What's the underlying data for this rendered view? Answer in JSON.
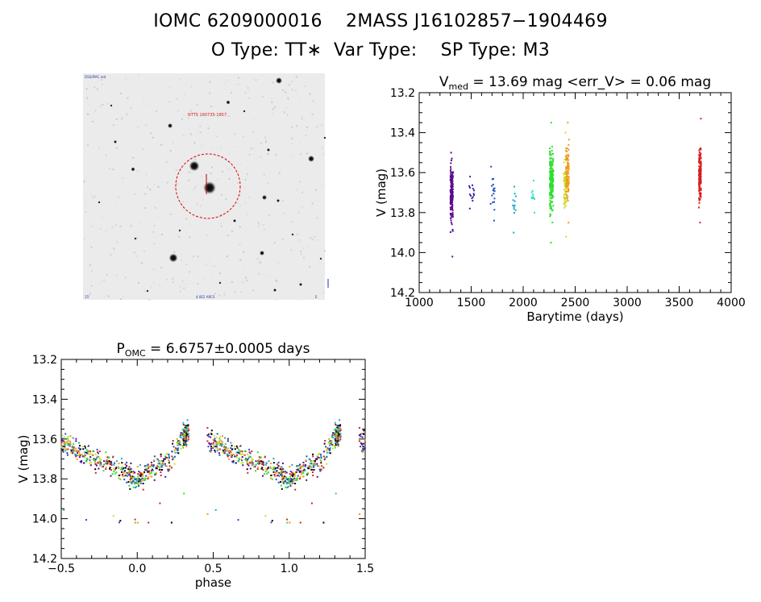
{
  "header": {
    "line1": "IOMC 6209000016    2MASS J16102857−1904469",
    "line2": "O Type: TT∗  Var Type:    SP Type: M3"
  },
  "sky_image": {
    "label_top_left": "DSS/IPAC.red",
    "label_target": "NTTS 160735-1857",
    "label_bottom_center": "4.0E2 ARCS",
    "label_bottom_left": "15'",
    "label_bottom_right": "E",
    "marker_color": "#dd0000"
  },
  "chart_data": [
    {
      "type": "scatter",
      "id": "light-curve",
      "title_main": "V",
      "title_sub": "med",
      "title_rest": " = 13.69 mag <err_V> = 0.06 mag",
      "xlabel": "Barytime (days)",
      "ylabel": "V (mag)",
      "xlim": [
        1000,
        4000
      ],
      "ylim": [
        14.2,
        13.2
      ],
      "xticks": [
        1000,
        1500,
        2000,
        2500,
        3000,
        3500,
        4000
      ],
      "yticks": [
        "13.2",
        "13.4",
        "13.6",
        "13.8",
        "14.0",
        "14.2"
      ],
      "series": [
        {
          "name": "s1",
          "color": "#5a0a8c",
          "x_min": 1300,
          "x_max": 1325,
          "y_min": 13.5,
          "y_max": 14.02,
          "center": 13.71,
          "n": 160
        },
        {
          "name": "s2",
          "color": "#3b1ca8",
          "x_min": 1480,
          "x_max": 1530,
          "y_min": 13.62,
          "y_max": 13.78,
          "center": 13.7,
          "n": 14
        },
        {
          "name": "s3",
          "color": "#1f4fc4",
          "x_min": 1680,
          "x_max": 1730,
          "y_min": 13.57,
          "y_max": 13.84,
          "center": 13.7,
          "n": 18
        },
        {
          "name": "s4",
          "color": "#1aa6c8",
          "x_min": 1900,
          "x_max": 1930,
          "y_min": 13.67,
          "y_max": 13.9,
          "center": 13.77,
          "n": 12
        },
        {
          "name": "s5",
          "color": "#3ed8d0",
          "x_min": 2080,
          "x_max": 2110,
          "y_min": 13.64,
          "y_max": 13.8,
          "center": 13.72,
          "n": 12
        },
        {
          "name": "s6",
          "color": "#2fe02f",
          "x_min": 2255,
          "x_max": 2290,
          "y_min": 13.35,
          "y_max": 13.95,
          "center": 13.65,
          "n": 200
        },
        {
          "name": "s7",
          "color": "#c8e02a",
          "x_min": 2390,
          "x_max": 2415,
          "y_min": 13.4,
          "y_max": 13.92,
          "center": 13.65,
          "n": 70
        },
        {
          "name": "s8",
          "color": "#f09a1a",
          "x_min": 2410,
          "x_max": 2440,
          "y_min": 13.35,
          "y_max": 13.85,
          "center": 13.6,
          "n": 90
        },
        {
          "name": "s9",
          "color": "#d81e1e",
          "x_min": 3690,
          "x_max": 3710,
          "y_min": 13.33,
          "y_max": 13.85,
          "center": 13.62,
          "n": 170
        }
      ]
    },
    {
      "type": "scatter",
      "id": "phase-curve",
      "title_main": "P",
      "title_sub": "OMC",
      "title_rest": " = 6.6757±0.0005 days",
      "xlabel": "phase",
      "ylabel": "V (mag)",
      "xlim": [
        -0.5,
        1.5
      ],
      "ylim": [
        14.2,
        13.2
      ],
      "xticks": [
        "−0.5",
        "0.0",
        "0.5",
        "1.0",
        "1.5"
      ],
      "yticks": [
        "13.2",
        "13.4",
        "13.6",
        "13.8",
        "14.0",
        "14.2"
      ],
      "colors": [
        "#000000",
        "#5a0a8c",
        "#1f4fc4",
        "#1aa6c8",
        "#2fe02f",
        "#c8e02a",
        "#f09a1a",
        "#d81e1e"
      ],
      "n_points": 620,
      "phase_profile": [
        [
          0.0,
          13.8
        ],
        [
          0.1,
          13.74
        ],
        [
          0.2,
          13.72
        ],
        [
          0.3,
          13.6
        ],
        [
          0.35,
          13.55
        ],
        [
          0.45,
          13.6
        ],
        [
          0.5,
          13.62
        ],
        [
          0.6,
          13.66
        ],
        [
          0.7,
          13.7
        ],
        [
          0.8,
          13.72
        ],
        [
          0.9,
          13.76
        ],
        [
          1.0,
          13.8
        ]
      ]
    }
  ]
}
